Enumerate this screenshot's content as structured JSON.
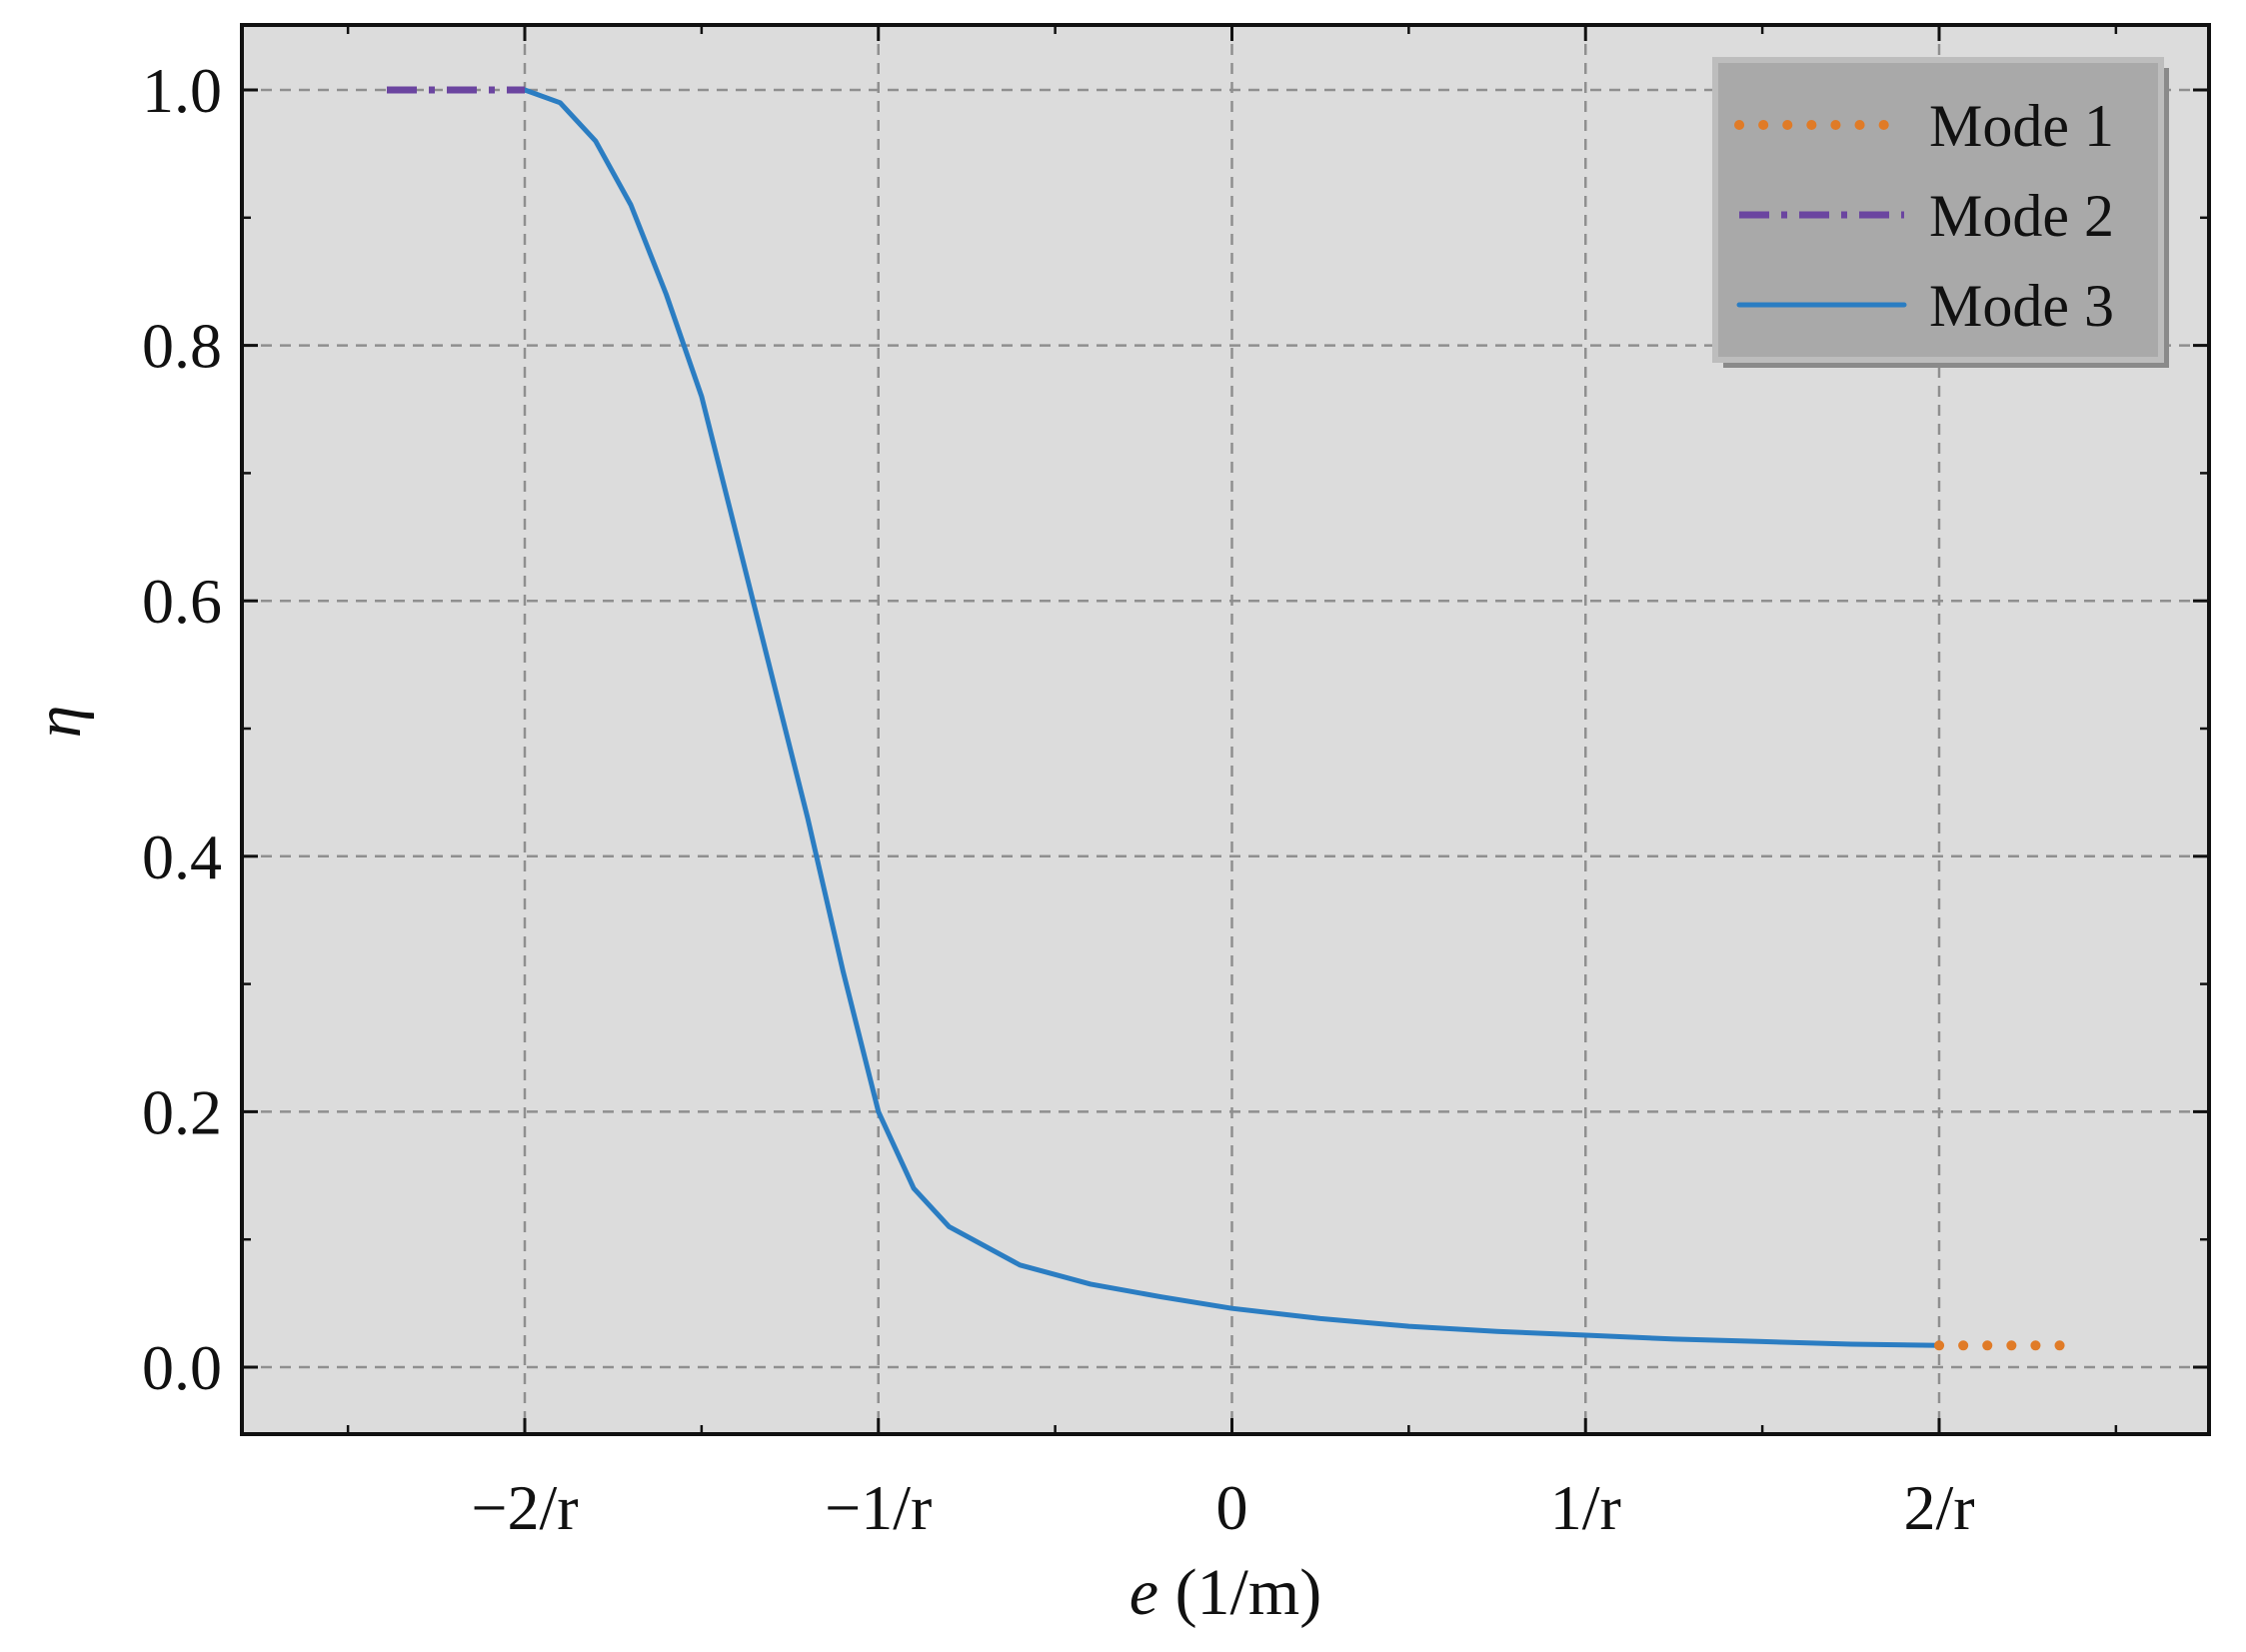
{
  "chart_data": {
    "type": "line",
    "xlabel_var": "e",
    "xlabel_unit": " (1/m)",
    "ylabel": "η",
    "xlim": [
      -2.0,
      2.0
    ],
    "ylim": [
      -0.05,
      1.05
    ],
    "x_ticks": [
      -2,
      -1,
      0,
      1,
      2
    ],
    "x_tick_labels": [
      "−2/r",
      "−1/r",
      "0",
      "1/r",
      "2/r"
    ],
    "y_ticks": [
      0.0,
      0.2,
      0.4,
      0.6,
      0.8,
      1.0
    ],
    "y_tick_labels": [
      "0.0",
      "0.2",
      "0.4",
      "0.6",
      "0.8",
      "1.0"
    ],
    "grid": true,
    "legend_position": "top-right",
    "background_color": "#dcdcdc",
    "series": [
      {
        "name": "Mode 1",
        "style": "dotted",
        "color": "#e07b27",
        "x": [
          2.0,
          2.1,
          2.2,
          2.3,
          2.39
        ],
        "y": [
          0.017,
          0.017,
          0.017,
          0.017,
          0.017
        ]
      },
      {
        "name": "Mode 2",
        "style": "dashdot",
        "color": "#6b45a0",
        "x": [
          -2.39,
          -2.3,
          -2.2,
          -2.1,
          -2.0
        ],
        "y": [
          1.0,
          1.0,
          1.0,
          1.0,
          1.0
        ]
      },
      {
        "name": "Mode 3",
        "style": "solid",
        "color": "#2b7dc2",
        "x": [
          -2.0,
          -1.9,
          -1.8,
          -1.7,
          -1.6,
          -1.5,
          -1.4,
          -1.3,
          -1.2,
          -1.1,
          -1.0,
          -0.9,
          -0.8,
          -0.6,
          -0.4,
          -0.2,
          0.0,
          0.25,
          0.5,
          0.75,
          1.0,
          1.25,
          1.5,
          1.75,
          2.0
        ],
        "y": [
          1.0,
          0.99,
          0.96,
          0.91,
          0.84,
          0.76,
          0.65,
          0.54,
          0.43,
          0.31,
          0.2,
          0.14,
          0.11,
          0.08,
          0.065,
          0.055,
          0.046,
          0.038,
          0.032,
          0.028,
          0.025,
          0.022,
          0.02,
          0.018,
          0.017
        ]
      }
    ]
  }
}
